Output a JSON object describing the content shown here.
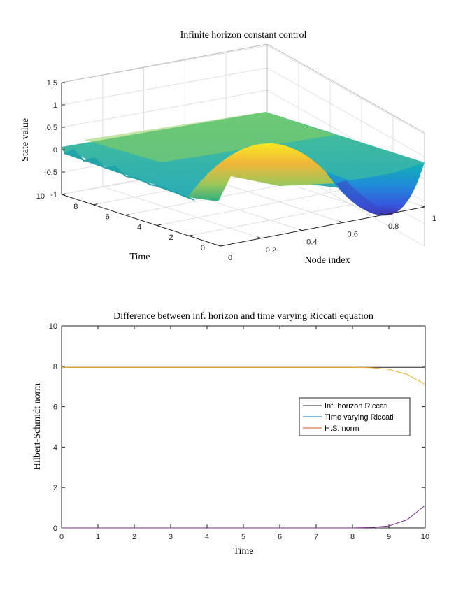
{
  "chart_data": [
    {
      "type": "surface",
      "title": "Infinite horizon constant control",
      "xlabel": "Node index",
      "ylabel": "Time",
      "zlabel": "State value",
      "xlim": [
        0,
        1
      ],
      "ylim": [
        0,
        10
      ],
      "zlim": [
        -1,
        1.5
      ],
      "xticks": [
        "0",
        "0.2",
        "0.4",
        "0.6",
        "0.8",
        "1"
      ],
      "yticks": [
        "0",
        "2",
        "4",
        "6",
        "8",
        "10"
      ],
      "zticks": [
        "-1",
        "-0.5",
        "0",
        "0.5",
        "1",
        "1.5"
      ],
      "colormap": "parula",
      "description_points": {
        "initial_profile_t0": {
          "x": [
            0,
            0.2,
            0.4,
            0.6,
            0.8,
            1
          ],
          "z": [
            0,
            0.3,
            0.7,
            -0.2,
            -1.0,
            -0.3
          ]
        },
        "final_profile_t10": {
          "x": [
            0,
            0.5,
            1
          ],
          "z": [
            -0.05,
            0.1,
            0.2
          ]
        }
      }
    },
    {
      "type": "line",
      "title": "Difference between inf. horizon and time varying Riccati equation",
      "xlabel": "Time",
      "ylabel": "Hilbert-Schmidt norm",
      "xlim": [
        0,
        10
      ],
      "ylim": [
        0,
        10
      ],
      "xticks": [
        "0",
        "1",
        "2",
        "3",
        "4",
        "5",
        "6",
        "7",
        "8",
        "9",
        "10"
      ],
      "yticks": [
        "0",
        "2",
        "4",
        "6",
        "8",
        "10"
      ],
      "legend_position": "east",
      "series": [
        {
          "name": "Inf. horizon Riccati",
          "color": "#262626",
          "x": [
            0,
            10
          ],
          "y": [
            7.95,
            7.95
          ]
        },
        {
          "name": "Time varying Riccati",
          "color": "#0072BD",
          "x": [
            0,
            8,
            8.5,
            9,
            9.5,
            10
          ],
          "y": [
            7.95,
            7.95,
            7.93,
            7.85,
            7.6,
            7.1
          ]
        },
        {
          "name": "H.S. norm",
          "color": "#D95319",
          "x": [
            0,
            8,
            8.5,
            9,
            9.5,
            10
          ],
          "y": [
            0,
            0,
            0.02,
            0.1,
            0.4,
            1.12
          ]
        }
      ]
    }
  ]
}
